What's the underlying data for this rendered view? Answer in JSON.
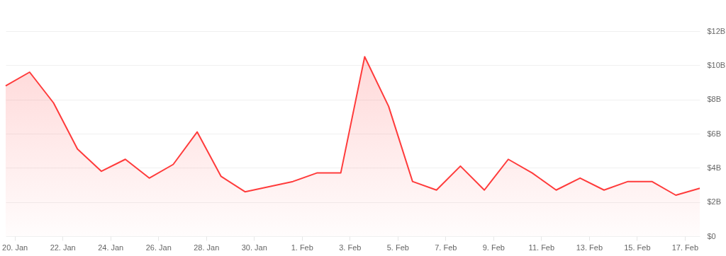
{
  "chart_data": {
    "type": "area",
    "x": [
      "--01-19T15:00",
      "--01-20T15:00",
      "--01-21T15:00",
      "--01-22T15:00",
      "--01-23T15:00",
      "--01-24T15:00",
      "--01-25T15:00",
      "--01-26T15:00",
      "--01-27T15:00",
      "--01-28T15:00",
      "--01-29T15:00",
      "--01-30T15:00",
      "--01-31T15:00",
      "--02-01T15:00",
      "--02-02T15:00",
      "--02-03T15:00",
      "--02-04T15:00",
      "--02-05T15:00",
      "--02-06T15:00",
      "--02-07T15:00",
      "--02-08T15:00",
      "--02-09T15:00",
      "--02-10T15:00",
      "--02-11T15:00",
      "--02-12T15:00",
      "--02-13T15:00",
      "--02-14T15:00",
      "--02-15T15:00",
      "--02-16T15:00",
      "--02-17T15:00"
    ],
    "series": [
      {
        "color": "#ff3b3b",
        "values": [
          8.8,
          9.6,
          7.8,
          5.1,
          3.8,
          4.5,
          3.4,
          4.2,
          6.1,
          3.5,
          2.6,
          2.9,
          3.2,
          3.7,
          3.7,
          10.5,
          7.6,
          3.2,
          2.7,
          4.1,
          2.7,
          4.5,
          3.7,
          2.7,
          3.4,
          2.7,
          3.2,
          3.2,
          2.4,
          2.8
        ]
      }
    ],
    "xlim": [
      "--01-19T15:00",
      "--02-17T15:00"
    ],
    "xticks": [
      {
        "value": "--01-20",
        "label": "20. Jan"
      },
      {
        "value": "--01-22",
        "label": "22. Jan"
      },
      {
        "value": "--01-24",
        "label": "24. Jan"
      },
      {
        "value": "--01-26",
        "label": "26. Jan"
      },
      {
        "value": "--01-28",
        "label": "28. Jan"
      },
      {
        "value": "--01-30",
        "label": "30. Jan"
      },
      {
        "value": "--02-01",
        "label": "1. Feb"
      },
      {
        "value": "--02-03",
        "label": "3. Feb"
      },
      {
        "value": "--02-05",
        "label": "5. Feb"
      },
      {
        "value": "--02-07",
        "label": "7. Feb"
      },
      {
        "value": "--02-09",
        "label": "9. Feb"
      },
      {
        "value": "--02-11",
        "label": "11. Feb"
      },
      {
        "value": "--02-13",
        "label": "13. Feb"
      },
      {
        "value": "--02-15",
        "label": "15. Feb"
      },
      {
        "value": "--02-17",
        "label": "17. Feb"
      }
    ],
    "ylim": [
      0,
      12
    ],
    "yticks": [
      {
        "value": 0,
        "label": "$0"
      },
      {
        "value": 2,
        "label": "$2B"
      },
      {
        "value": 4,
        "label": "$4B"
      },
      {
        "value": 6,
        "label": "$6B"
      },
      {
        "value": 8,
        "label": "$8B"
      },
      {
        "value": 10,
        "label": "$10B"
      },
      {
        "value": 12,
        "label": "$12B"
      }
    ],
    "grid": "y"
  }
}
